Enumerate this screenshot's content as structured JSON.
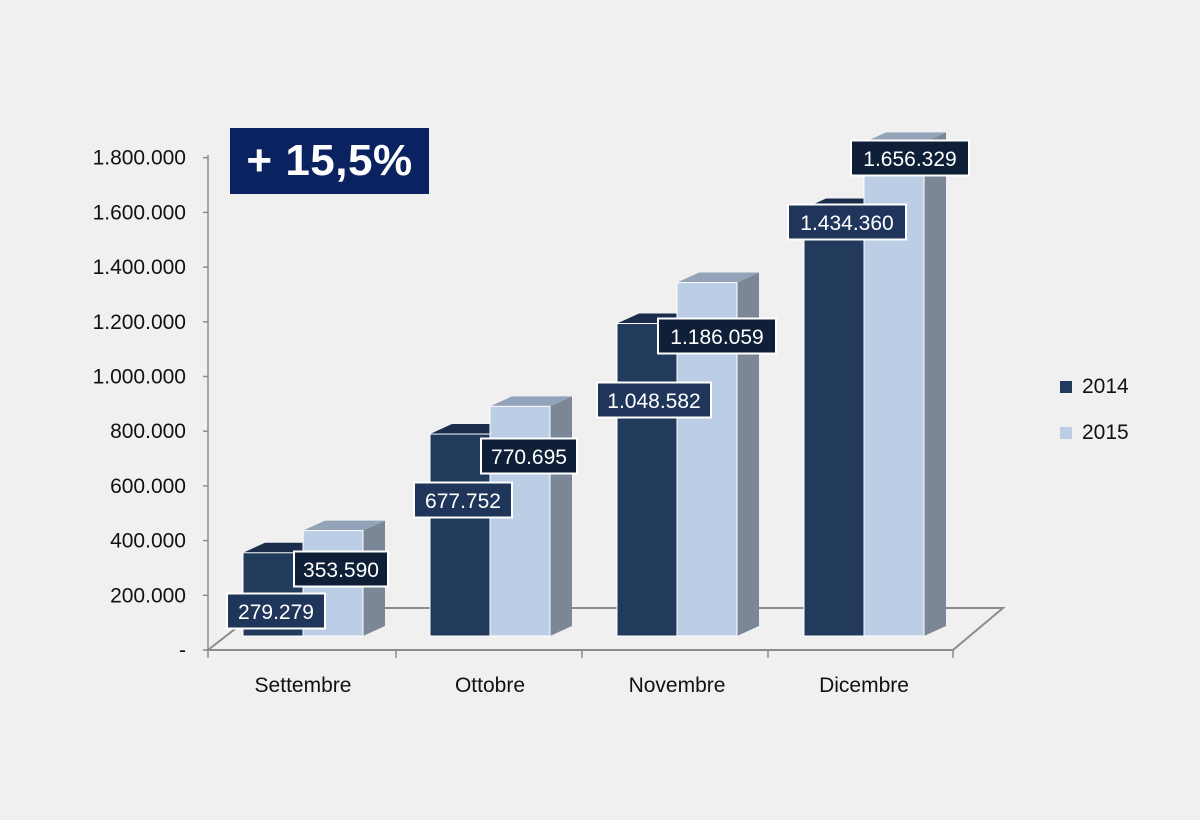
{
  "chart_data": {
    "type": "bar",
    "categories": [
      "Settembre",
      "Ottobre",
      "Novembre",
      "Dicembre"
    ],
    "series": [
      {
        "name": "2014",
        "values": [
          279279,
          677752,
          1048582,
          1434360
        ],
        "labels": [
          "279.279",
          "677.752",
          "1.048.582",
          "1.434.360"
        ],
        "color": "#223a5c"
      },
      {
        "name": "2015",
        "values": [
          353590,
          770695,
          1186059,
          1656329
        ],
        "labels": [
          "353.590",
          "770.695",
          "1.186.059",
          "1.656.329"
        ],
        "color": "#bccde6"
      }
    ],
    "yticks": [
      "-",
      "200.000",
      "400.000",
      "600.000",
      "800.000",
      "1.000.000",
      "1.200.000",
      "1.400.000",
      "1.600.000",
      "1.800.000"
    ],
    "ylim": [
      0,
      1800000
    ],
    "legend_position": "right",
    "grid": false,
    "style": "3d clustered column"
  },
  "badge": {
    "text": "+ 15,5%",
    "color": "#0b2260"
  },
  "colors": {
    "background": "#f0f0f0",
    "label_box": "#1f365a",
    "side_2014": "#15263e",
    "side_2015": "#7b8797"
  }
}
